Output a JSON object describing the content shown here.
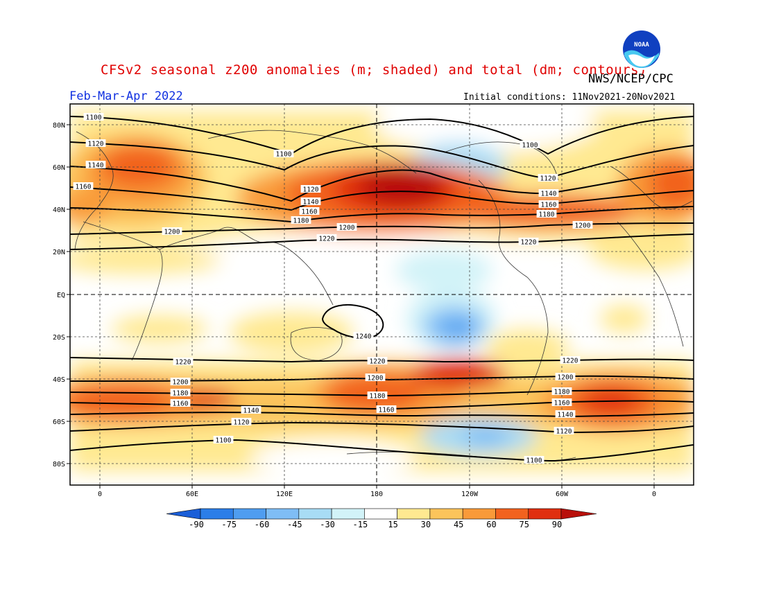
{
  "title": "CFSv2 seasonal z200 anomalies (m; shaded) and total (dm; contours)",
  "credit": "NWS/NCEP/CPC",
  "period": "Feb-Mar-Apr 2022",
  "initial_conditions": "Initial conditions: 11Nov2021-20Nov2021",
  "logo_text": "NOAA",
  "lat_ticks": [
    "80N",
    "60N",
    "40N",
    "20N",
    "EQ",
    "20S",
    "40S",
    "60S",
    "80S"
  ],
  "lon_ticks": [
    "0",
    "60E",
    "120E",
    "180",
    "120W",
    "60W",
    "0"
  ],
  "colorbar": {
    "labels": [
      "-90",
      "-75",
      "-60",
      "-45",
      "-30",
      "-15",
      "15",
      "30",
      "45",
      "60",
      "75",
      "90"
    ],
    "colors": [
      "#1a5ed8",
      "#2c7ee8",
      "#4f9df0",
      "#7fbdf5",
      "#a8dcf5",
      "#d2f3f8",
      "#ffffff",
      "#ffe991",
      "#fcc45b",
      "#f99a39",
      "#f2621e",
      "#e02f10",
      "#b8100a"
    ]
  },
  "contour_labels": [
    "1100",
    "1120",
    "1140",
    "1160",
    "1180",
    "1200",
    "1220",
    "1240"
  ],
  "map_labels": {
    "nh": [
      {
        "t": "1100"
      },
      {
        "t": "1120"
      },
      {
        "t": "1140"
      },
      {
        "t": "1160"
      },
      {
        "t": "1100"
      },
      {
        "t": "1120"
      },
      {
        "t": "1140"
      },
      {
        "t": "1160"
      },
      {
        "t": "1180"
      },
      {
        "t": "1200"
      },
      {
        "t": "1200"
      },
      {
        "t": "1220"
      },
      {
        "t": "1100"
      },
      {
        "t": "1120"
      },
      {
        "t": "1140"
      },
      {
        "t": "1160"
      },
      {
        "t": "1180"
      },
      {
        "t": "1200"
      },
      {
        "t": "1220"
      }
    ],
    "sh": [
      {
        "t": "1240"
      },
      {
        "t": "1220"
      },
      {
        "t": "1220"
      },
      {
        "t": "1220"
      },
      {
        "t": "1200"
      },
      {
        "t": "1200"
      },
      {
        "t": "1200"
      },
      {
        "t": "1180"
      },
      {
        "t": "1180"
      },
      {
        "t": "1180"
      },
      {
        "t": "1160"
      },
      {
        "t": "1160"
      },
      {
        "t": "1160"
      },
      {
        "t": "1140"
      },
      {
        "t": "1140"
      },
      {
        "t": "1120"
      },
      {
        "t": "1120"
      },
      {
        "t": "1100"
      },
      {
        "t": "1100"
      }
    ]
  }
}
